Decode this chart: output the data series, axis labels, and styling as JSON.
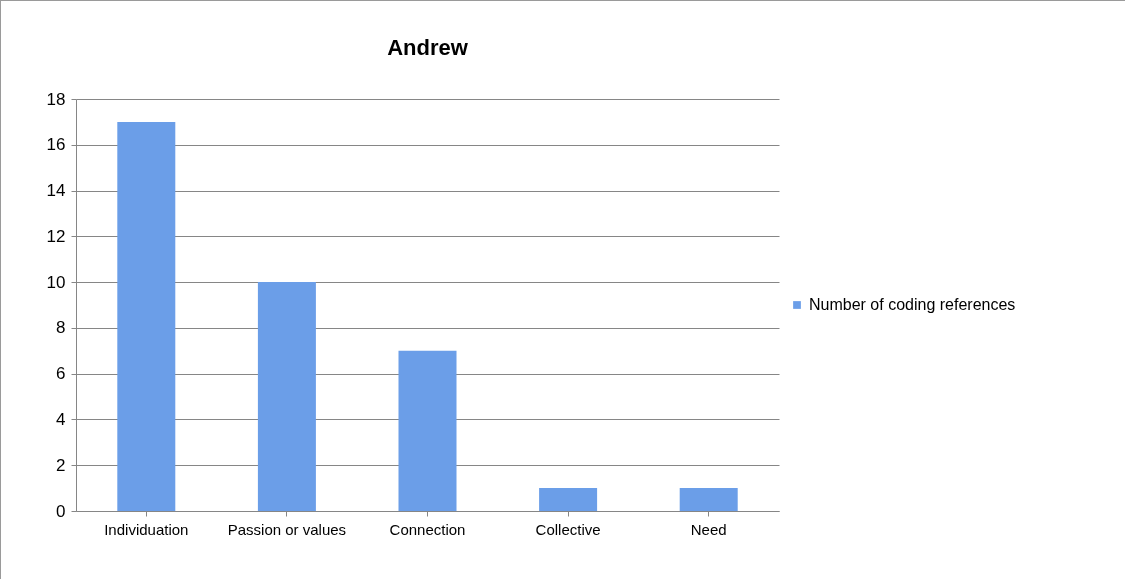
{
  "chart_data": {
    "type": "bar",
    "title": "Andrew",
    "categories": [
      "Individuation",
      "Passion or values",
      "Connection",
      "Collective",
      "Need"
    ],
    "series": [
      {
        "name": "Number of coding references",
        "color": "#6b9ee8",
        "values": [
          17,
          10,
          7,
          1,
          1
        ]
      }
    ],
    "ylim": [
      0,
      18
    ],
    "yticks": [
      0,
      2,
      4,
      6,
      8,
      10,
      12,
      14,
      16,
      18
    ],
    "grid": "y",
    "legend": "right"
  }
}
